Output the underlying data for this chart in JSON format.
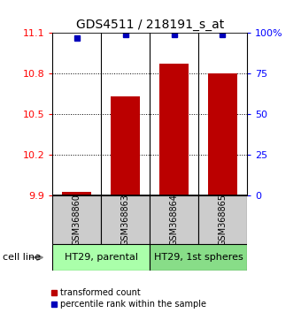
{
  "title": "GDS4511 / 218191_s_at",
  "samples": [
    "GSM368860",
    "GSM368863",
    "GSM368864",
    "GSM368865"
  ],
  "transformed_counts": [
    9.93,
    10.63,
    10.87,
    10.8
  ],
  "percentile_ranks": [
    97,
    99,
    99,
    99
  ],
  "ylim_left": [
    9.9,
    11.1
  ],
  "ylim_right": [
    0,
    100
  ],
  "yticks_left": [
    9.9,
    10.2,
    10.5,
    10.8,
    11.1
  ],
  "yticks_right": [
    0,
    25,
    50,
    75,
    100
  ],
  "ytick_labels_right": [
    "0",
    "25",
    "50",
    "75",
    "100%"
  ],
  "groups": [
    {
      "label": "HT29, parental",
      "indices": [
        0,
        1
      ],
      "color": "#aaffaa"
    },
    {
      "label": "HT29, 1st spheres",
      "indices": [
        2,
        3
      ],
      "color": "#88dd88"
    }
  ],
  "bar_color": "#bb0000",
  "marker_color": "#0000bb",
  "bar_width": 0.6,
  "sample_box_color": "#cccccc",
  "cell_line_label": "cell line",
  "legend_items": [
    {
      "color": "#bb0000",
      "label": "transformed count"
    },
    {
      "color": "#0000bb",
      "label": "percentile rank within the sample"
    }
  ]
}
